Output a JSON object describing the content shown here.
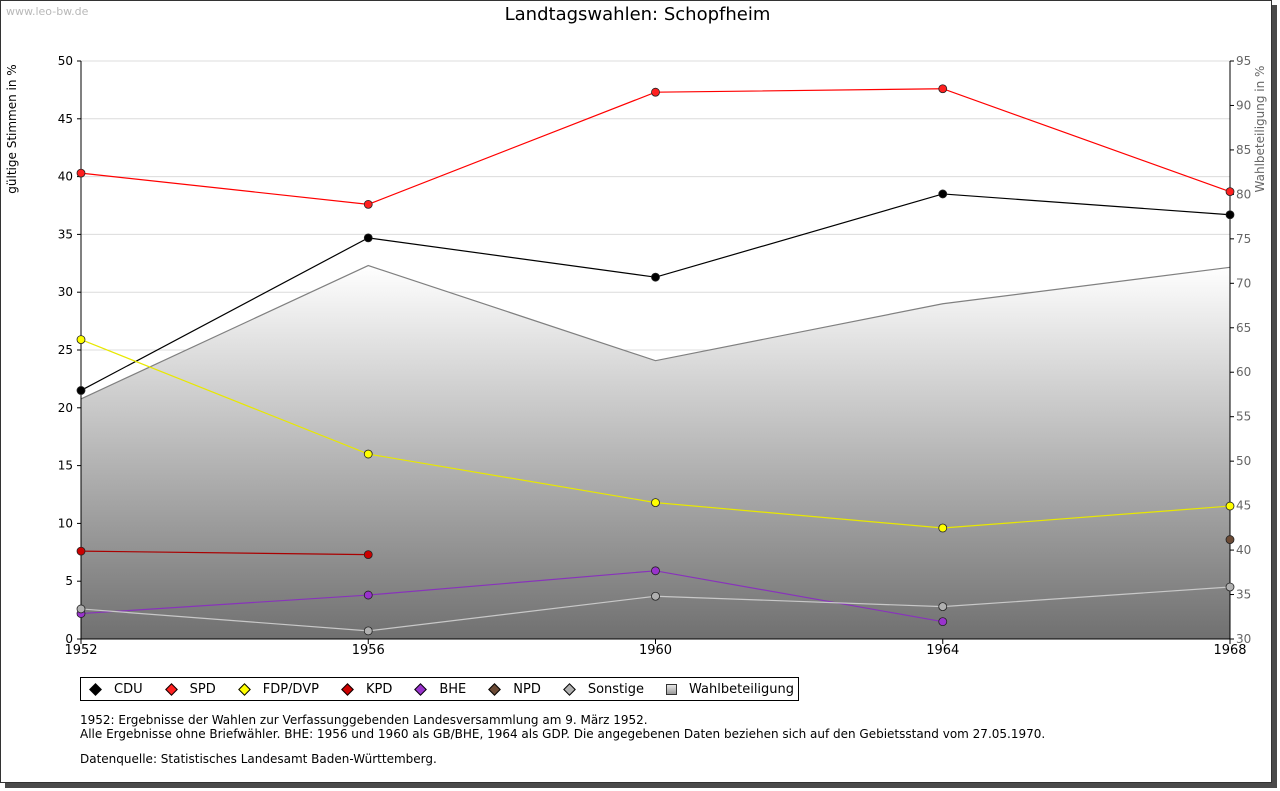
{
  "watermark": "www.leo-bw.de",
  "chart_data": {
    "type": "line",
    "title": "Landtagswahlen: Schopfheim",
    "ylabel": "gültige Stimmen in %",
    "y2label": "Wahlbeteiligung in %",
    "x": [
      "1952",
      "1956",
      "1960",
      "1964",
      "1968"
    ],
    "ylim": [
      0,
      50
    ],
    "yticks": [
      0,
      5,
      10,
      15,
      20,
      25,
      30,
      35,
      40,
      45,
      50
    ],
    "y2lim": [
      30,
      95
    ],
    "y2ticks": [
      30,
      35,
      40,
      45,
      50,
      55,
      60,
      65,
      70,
      75,
      80,
      85,
      90,
      95
    ],
    "grid": true,
    "legend_position": "bottom",
    "area": {
      "name": "Wahlbeteiligung",
      "axis": "right",
      "values": [
        57.0,
        72.0,
        61.3,
        67.7,
        71.8
      ]
    },
    "series": [
      {
        "name": "CDU",
        "color": "#000000",
        "line": "#000000",
        "values": [
          21.5,
          34.7,
          31.3,
          38.5,
          36.7
        ]
      },
      {
        "name": "SPD",
        "color": "#ff2020",
        "line": "#ff0000",
        "values": [
          40.3,
          37.6,
          47.3,
          47.6,
          38.7
        ]
      },
      {
        "name": "FDP/DVP",
        "color": "#ffff00",
        "line": "#e8e800",
        "values": [
          25.9,
          16.0,
          11.8,
          9.6,
          11.5
        ]
      },
      {
        "name": "KPD",
        "color": "#cc0000",
        "line": "#aa0000",
        "values": [
          7.6,
          7.3,
          null,
          null,
          null
        ]
      },
      {
        "name": "BHE",
        "color": "#9933cc",
        "line": "#8833bb",
        "values": [
          2.2,
          3.8,
          5.9,
          1.5,
          null
        ]
      },
      {
        "name": "NPD",
        "color": "#6b4a35",
        "line": "#6b4a35",
        "values": [
          null,
          null,
          null,
          null,
          8.6
        ]
      },
      {
        "name": "Sonstige",
        "color": "#b0b0b0",
        "line": "#c8c8c8",
        "values": [
          2.6,
          0.7,
          3.7,
          2.8,
          4.5
        ]
      }
    ]
  },
  "legend": {
    "items": [
      {
        "label": "CDU",
        "color": "#000000"
      },
      {
        "label": "SPD",
        "color": "#ff2020"
      },
      {
        "label": "FDP/DVP",
        "color": "#ffff00"
      },
      {
        "label": "KPD",
        "color": "#cc0000"
      },
      {
        "label": "BHE",
        "color": "#9933cc"
      },
      {
        "label": "NPD",
        "color": "#6b4a35"
      },
      {
        "label": "Sonstige",
        "color": "#b0b0b0"
      }
    ],
    "area_label": "Wahlbeteiligung"
  },
  "notes": {
    "line1": "1952: Ergebnisse der Wahlen zur Verfassunggebenden Landesversammlung am 9. März 1952.",
    "line2": "Alle Ergebnisse ohne Briefwähler. BHE: 1956 und 1960 als GB/BHE, 1964 als GDP. Die angegebenen Daten beziehen sich auf den Gebietsstand vom 27.05.1970.",
    "source": "Datenquelle: Statistisches Landesamt Baden-Württemberg."
  }
}
